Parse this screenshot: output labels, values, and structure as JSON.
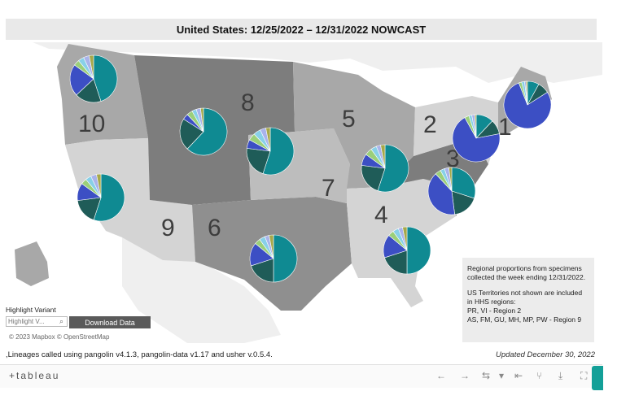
{
  "title": "United States: 12/25/2022 – 12/31/2022 NOWCAST",
  "regions": [
    {
      "label": "1"
    },
    {
      "label": "2"
    },
    {
      "label": "3"
    },
    {
      "label": "4"
    },
    {
      "label": "5"
    },
    {
      "label": "6"
    },
    {
      "label": "7"
    },
    {
      "label": "8"
    },
    {
      "label": "9"
    },
    {
      "label": "10"
    }
  ],
  "note": {
    "line1": "Regional proportions from specimens collected the week ending 12/31/2022.",
    "line2": "US Territories not shown are included in HHS regions:",
    "line3": "PR, VI - Region 2",
    "line4": "AS, FM, GU, MH, MP, PW - Region 9"
  },
  "highlight": {
    "label": "Highlight Variant",
    "placeholder": "Highlight V..."
  },
  "download_label": "Download Data",
  "attribution": "© 2023 Mapbox  © OpenStreetMap",
  "lineage_note": ",Lineages called using pangolin v4.1.3, pangolin-data v1.17 and usher v.0.5.4.",
  "updated": "Updated December 30, 2022",
  "toolbar": {
    "logo": "+tableau"
  },
  "colors": {
    "teal": "#0f8a92",
    "dark_green": "#1f5c58",
    "royal_blue": "#3c4fc4",
    "light_green": "#9bcf7a",
    "light_blue": "#88d0e8",
    "lavender": "#a9b3ea",
    "olive": "#a6a84a",
    "region_dark": "#7d7d7d",
    "region_mid": "#a8a8a8",
    "region_light": "#d2d2d2"
  },
  "icons": [
    "tableau-logo-icon",
    "undo-icon",
    "redo-icon",
    "revert-icon",
    "refresh-icon",
    "pause-icon",
    "share-icon",
    "download-icon",
    "fullscreen-icon",
    "search-icon"
  ]
}
